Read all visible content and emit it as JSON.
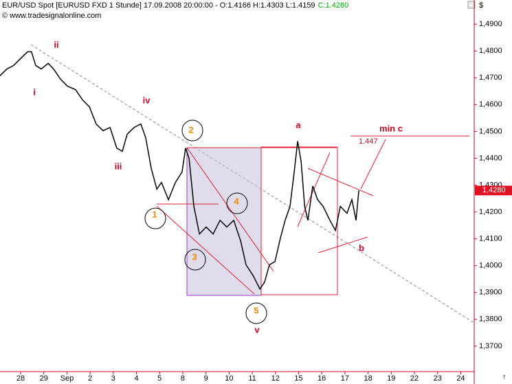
{
  "chart_data": {
    "type": "line",
    "title": "EUR/USD Spot [EURUSD FXD  1 Stunde] 17.09.2008 20:00:00 - O:1.4166 H:1.4303 L:1.4159",
    "close_text": "C:1.4280",
    "source": "© www.tradesignalonline.com",
    "currency": "$",
    "color": "#000000",
    "x": [
      -0.89,
      -0.59,
      -0.3,
      0,
      0.3,
      0.47,
      0.65,
      0.89,
      1.19,
      1.42,
      1.72,
      2.02,
      2.37,
      2.67,
      2.97,
      3.26,
      3.56,
      3.86,
      4.15,
      4.39,
      4.6,
      4.9,
      5.19,
      5.4,
      5.64,
      5.88,
      6.08,
      6.38,
      6.68,
      6.97,
      7.12,
      7.27,
      7.48,
      7.72,
      8.01,
      8.31,
      8.61,
      8.9,
      9.2,
      9.5,
      9.73,
      10.03,
      10.33,
      10.53,
      10.74,
      10.98,
      11.22,
      11.42,
      11.63,
      11.81,
      11.96,
      12.11,
      12.26,
      12.4,
      12.61,
      12.82,
      13.06,
      13.35,
      13.59,
      13.8,
      14.09,
      14.3,
      14.48,
      14.6
    ],
    "values": [
      1.4708,
      1.4733,
      1.4746,
      1.4772,
      1.4797,
      1.4797,
      1.4746,
      1.4733,
      1.4754,
      1.4733,
      1.4695,
      1.4669,
      1.4656,
      1.4618,
      1.4592,
      1.4528,
      1.4503,
      1.4515,
      1.4438,
      1.4426,
      1.449,
      1.4515,
      1.4528,
      1.4477,
      1.4362,
      1.4285,
      1.431,
      1.4246,
      1.431,
      1.4349,
      1.4438,
      1.44,
      1.4221,
      1.4118,
      1.4144,
      1.4118,
      1.4169,
      1.4144,
      1.4169,
      1.4092,
      1.4003,
      1.3964,
      1.3913,
      1.3938,
      1.4003,
      1.4015,
      1.4105,
      1.4169,
      1.4221,
      1.4349,
      1.4464,
      1.4387,
      1.4221,
      1.4169,
      1.4297,
      1.4246,
      1.4221,
      1.4169,
      1.4131,
      1.4221,
      1.4195,
      1.4246,
      1.4169,
      1.428
    ],
    "xlim": [
      -0.89,
      19.58
    ],
    "ylim": [
      1.3605,
      1.499
    ],
    "xticks": [
      {
        "value": 0,
        "label": "28"
      },
      {
        "value": 1,
        "label": "29"
      },
      {
        "value": 2,
        "label": "Sep"
      },
      {
        "value": 3,
        "label": "2"
      },
      {
        "value": 4,
        "label": "3"
      },
      {
        "value": 5,
        "label": "4"
      },
      {
        "value": 6,
        "label": "5"
      },
      {
        "value": 7,
        "label": "8"
      },
      {
        "value": 8,
        "label": "9"
      },
      {
        "value": 9,
        "label": "10"
      },
      {
        "value": 10,
        "label": "11"
      },
      {
        "value": 11,
        "label": "12"
      },
      {
        "value": 12,
        "label": "15"
      },
      {
        "value": 13,
        "label": "16"
      },
      {
        "value": 14,
        "label": "17"
      },
      {
        "value": 15,
        "label": "18"
      },
      {
        "value": 16,
        "label": "19"
      },
      {
        "value": 17,
        "label": "22"
      },
      {
        "value": 18,
        "label": "23"
      },
      {
        "value": 19,
        "label": "24"
      }
    ],
    "yticks": [
      {
        "value": 1.49,
        "label": "1,4900"
      },
      {
        "value": 1.48,
        "label": "1,4800"
      },
      {
        "value": 1.47,
        "label": "1,4700"
      },
      {
        "value": 1.46,
        "label": "1,4600"
      },
      {
        "value": 1.45,
        "label": "1,4500"
      },
      {
        "value": 1.44,
        "label": "1,4400"
      },
      {
        "value": 1.43,
        "label": "1,4300"
      },
      {
        "value": 1.42,
        "label": "1,4200"
      },
      {
        "value": 1.41,
        "label": "1,4100"
      },
      {
        "value": 1.4,
        "label": "1,4000"
      },
      {
        "value": 1.39,
        "label": "1,3900"
      },
      {
        "value": 1.38,
        "label": "1,3800"
      },
      {
        "value": 1.37,
        "label": "1,3700"
      }
    ],
    "last_price": {
      "value": 1.428,
      "label": "1,4280"
    },
    "annotations": {
      "i": "i",
      "ii": "ii",
      "iii": "iii",
      "iv": "iv",
      "v": "v",
      "w1": "1",
      "w2": "2",
      "w3": "3",
      "w4": "4",
      "w5": "5",
      "a": "a",
      "b": "b",
      "min_c": "min c",
      "target": "1.447"
    }
  }
}
